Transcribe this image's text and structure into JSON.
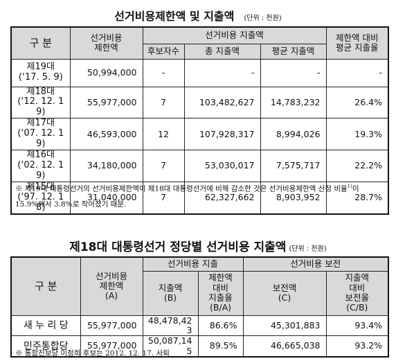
{
  "table1": {
    "title": "선거비용제한액 및 지출액",
    "unit": "(단위 : 천원)",
    "header": {
      "category": "구 분",
      "limit": [
        "선거비용",
        "제한액"
      ],
      "spending": "선거비용 지출액",
      "ratio": [
        "제한액 대비",
        "평균 지출율"
      ],
      "candidates": "후보자수",
      "total": "총 지출액",
      "average": "평균 지출액"
    },
    "rows": [
      [
        [
          "제19대",
          "(‘17. 5. 9)"
        ],
        "50,994,000",
        "-",
        "-",
        "-",
        "-"
      ],
      [
        [
          "제18대",
          "(‘12. 12. 19)"
        ],
        "55,977,000",
        "7",
        "103,482,627",
        "14,783,232",
        "26.4%"
      ],
      [
        [
          "제17대",
          "(‘07. 12. 19)"
        ],
        "46,593,000",
        "12",
        "107,928,317",
        "8,994,026",
        "19.3%"
      ],
      [
        [
          "제16대",
          "(‘02. 12. 19)"
        ],
        "34,180,000",
        "7",
        "53,030,017",
        "7,575,717",
        "22.2%"
      ],
      [
        [
          "제15대",
          "(‘97. 12. 18)"
        ],
        "31,040,000",
        "7",
        "62,327,662",
        "8,903,952",
        "28.7%"
      ]
    ],
    "note": [
      "※ 제19대 대통령선거의 선거비용제한액이 제18대 대통령선거에 비해 감소한 것은 선거비용제한액 산정 비율",
      "1)",
      "이 15.9%에서 3.8%로 작아졌기 때문."
    ]
  },
  "table2": {
    "title": "제18대 대통령선거 정당별 선거비용 지출액",
    "unit": "(단위 : 천원)",
    "header": {
      "category": "구 분",
      "limit": [
        "선거비용",
        "제한액",
        "(A)"
      ],
      "spending": "선거비용 지출",
      "reimbursement": "선거비용 보전",
      "spent": [
        "지출액",
        "(B)"
      ],
      "spend_ratio": [
        "제한액",
        "대비",
        "지출율",
        "(B/A)"
      ],
      "reimbursed": [
        "보전액",
        "(C)"
      ],
      "reimburse_ratio": [
        "지출액",
        "대비",
        "보전율",
        "(C/B)"
      ]
    },
    "rows": [
      [
        "새 누 리 당",
        "55,977,000",
        "48,478,423",
        "86.6%",
        "45,301,883",
        "93.4%"
      ],
      [
        "민주통합당",
        "55,977,000",
        "50,087,145",
        "89.5%",
        "46,665,038",
        "93.2%"
      ]
    ],
    "note": "※ 통합진보당 이정희 후보는 2012. 12. 17. 사퇴"
  }
}
